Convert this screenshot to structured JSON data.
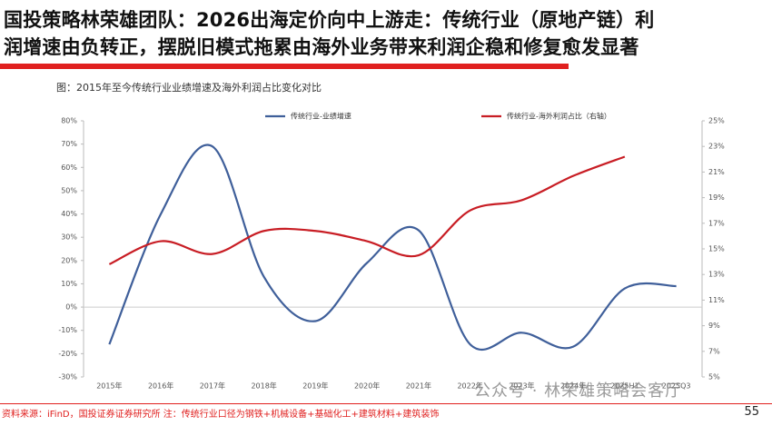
{
  "header": {
    "title_line1": "国投策略林荣雄团队：2026出海定价向中上游走：传统行业（原地产链）利",
    "title_line2": "润增速由负转正，摆脱旧模式拖累由海外业务带来利润企稳和修复愈发显著"
  },
  "chart_data": {
    "type": "line",
    "title": "图：2015年至今传统行业业绩增速及海外利润占比变化对比",
    "categories": [
      "2015年",
      "2016年",
      "2017年",
      "2018年",
      "2019年",
      "2020年",
      "2021年",
      "2022年",
      "2023年",
      "2024年",
      "2025H1",
      "2025Q3"
    ],
    "series": [
      {
        "name": "传统行业-业绩增速",
        "color": "#3f5f9a",
        "values": [
          -16,
          40,
          69,
          13,
          -6,
          19,
          33,
          -16,
          -11,
          -17,
          8,
          9
        ]
      },
      {
        "name": "传统行业-海外利润占比（右轴）",
        "color": "#c81d24",
        "axis": "y2",
        "values": [
          13.8,
          15.6,
          14.6,
          16.4,
          16.4,
          15.6,
          14.5,
          18.0,
          18.8,
          20.7,
          22.2,
          null
        ]
      }
    ],
    "ylim": [
      -30,
      80
    ],
    "yticks": [
      {
        "value": -30,
        "label": "-30%"
      },
      {
        "value": -20,
        "label": "-20%"
      },
      {
        "value": -10,
        "label": "-10%"
      },
      {
        "value": 0,
        "label": "0%"
      },
      {
        "value": 10,
        "label": "10%"
      },
      {
        "value": 20,
        "label": "20%"
      },
      {
        "value": 30,
        "label": "30%"
      },
      {
        "value": 40,
        "label": "40%"
      },
      {
        "value": 50,
        "label": "50%"
      },
      {
        "value": 60,
        "label": "60%"
      },
      {
        "value": 70,
        "label": "70%"
      },
      {
        "value": 80,
        "label": "80%"
      }
    ],
    "y2lim": [
      5,
      25
    ],
    "y2ticks": [
      {
        "value": 5,
        "label": "5%"
      },
      {
        "value": 7,
        "label": "7%"
      },
      {
        "value": 9,
        "label": "9%"
      },
      {
        "value": 11,
        "label": "11%"
      },
      {
        "value": 13,
        "label": "13%"
      },
      {
        "value": 15,
        "label": "15%"
      },
      {
        "value": 17,
        "label": "17%"
      },
      {
        "value": 19,
        "label": "19%"
      },
      {
        "value": 21,
        "label": "21%"
      },
      {
        "value": 23,
        "label": "23%"
      },
      {
        "value": 25,
        "label": "25%"
      }
    ],
    "legend": "top"
  },
  "footer": {
    "source": "资料来源：iFinD，国投证券证券研究所    注：传统行业口径为钢铁+机械设备+基础化工+建筑材料+建筑装饰",
    "page": "55",
    "watermark": "公众号 · 林荣雄策略会客厅"
  }
}
